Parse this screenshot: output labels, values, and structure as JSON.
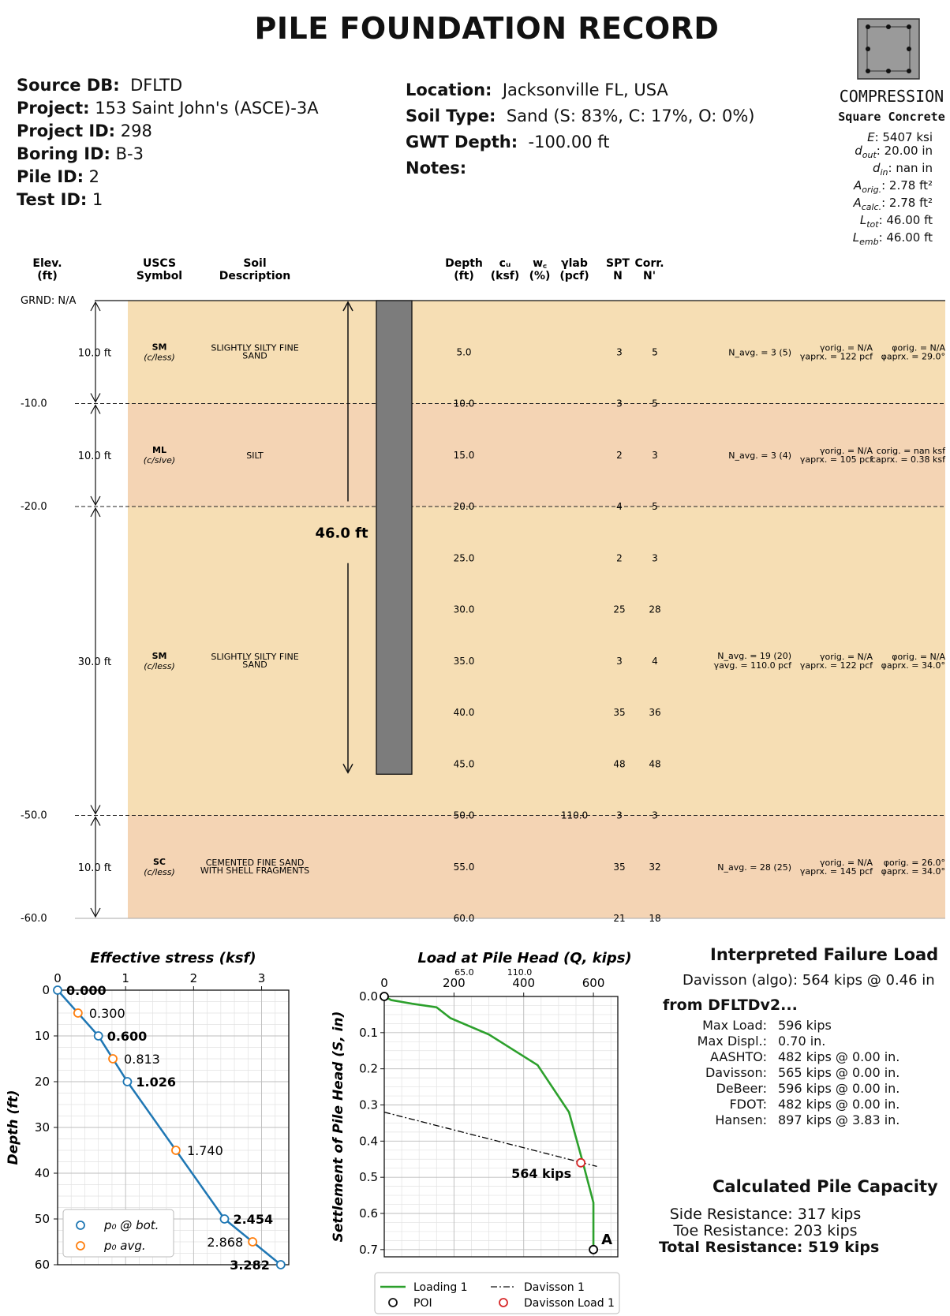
{
  "title": "PILE FOUNDATION RECORD",
  "meta_left": [
    {
      "label": "Source DB:",
      "value": "DFLTD"
    },
    {
      "label": "Project:",
      "value": "153 Saint John's (ASCE)-3A"
    },
    {
      "label": "Project ID:",
      "value": "298"
    },
    {
      "label": "Boring ID:",
      "value": "B-3"
    },
    {
      "label": "Pile ID:",
      "value": "2"
    },
    {
      "label": "Test ID:",
      "value": "1"
    }
  ],
  "meta_right": [
    {
      "label": "Location:",
      "value": "Jacksonville FL, USA"
    },
    {
      "label": "Soil Type:",
      "value": "Sand (S: 83%, C: 17%, O: 0%)"
    },
    {
      "label": "GWT Depth:",
      "value": "-100.00 ft"
    },
    {
      "label": "Notes:",
      "value": ""
    }
  ],
  "pile_info": {
    "type": "COMPRESSION",
    "section": "Square Concrete",
    "props": [
      {
        "sym": "E",
        "sub": "",
        "val": "5407 ksi"
      },
      {
        "sym": "d",
        "sub": "out",
        "val": "20.00 in"
      },
      {
        "sym": "d",
        "sub": "in",
        "val": "nan in"
      },
      {
        "sym": "A",
        "sub": "orig.",
        "val": "2.78 ft²"
      },
      {
        "sym": "A",
        "sub": "calc.",
        "val": "2.78 ft²"
      },
      {
        "sym": "L",
        "sub": "tot",
        "val": "46.00 ft"
      },
      {
        "sym": "L",
        "sub": "emb",
        "val": "46.00 ft"
      }
    ]
  },
  "log_headers": {
    "elev": "Elev.\n(ft)",
    "uscs": "USCS\nSymbol",
    "soil": "Soil\nDescription",
    "depth": "Depth\n(ft)",
    "cu": "cᵤ\n(ksf)",
    "wc": "w꜀\n(%)",
    "ylab": "γlab\n(pcf)",
    "spt": "SPT\nN",
    "corr": "Corr.\nN'"
  },
  "ground_label": "GRND: N/A",
  "elev_marks": [
    "-10.0",
    "-20.0",
    "-50.0",
    "-60.0"
  ],
  "pile_length_label": "46.0 ft",
  "layers": [
    {
      "thickness": "10.0 ft",
      "uscs": "SM",
      "cls": "(c/less)",
      "desc": [
        "SLIGHTLY SILTY FINE",
        "SAND"
      ],
      "navg": "N_avg. = 3 (5)",
      "gamma_avg": "",
      "gamma_orig": "γorig. = N/A",
      "gamma_aprx": "γaprx. = 122 pcf",
      "p1": "φorig. = N/A",
      "p2": "φaprx. = 29.0°",
      "color": "#f6deb4"
    },
    {
      "thickness": "10.0 ft",
      "uscs": "ML",
      "cls": "(c/sive)",
      "desc": [
        "SILT"
      ],
      "navg": "N_avg. = 3 (4)",
      "gamma_avg": "",
      "gamma_orig": "γorig. = N/A",
      "gamma_aprx": "γaprx. = 105 pcf",
      "p1": "corig. = nan ksf",
      "p2": "caprx. = 0.38 ksf",
      "color": "#f4d4b4"
    },
    {
      "thickness": "30.0 ft",
      "uscs": "SM",
      "cls": "(c/less)",
      "desc": [
        "SLIGHTLY SILTY FINE",
        "SAND"
      ],
      "navg": "N_avg. = 19 (20)",
      "gamma_avg": "γavg. = 110.0 pcf",
      "gamma_orig": "γorig. = N/A",
      "gamma_aprx": "γaprx. = 122 pcf",
      "p1": "φorig. = N/A",
      "p2": "φaprx. = 34.0°",
      "color": "#f6deb4"
    },
    {
      "thickness": "10.0 ft",
      "uscs": "SC",
      "cls": "(c/less)",
      "desc": [
        "CEMENTED FINE SAND",
        "WITH SHELL FRAGMENTS"
      ],
      "navg": "N_avg. = 28 (25)",
      "gamma_avg": "",
      "gamma_orig": "γorig. = N/A",
      "gamma_aprx": "γaprx. = 145 pcf",
      "p1": "φorig. = 26.0°",
      "p2": "φaprx. = 34.0°",
      "color": "#f4d4b4"
    }
  ],
  "samples": [
    {
      "depth": "5.0",
      "ylab": "",
      "n": "3",
      "ncorr": "5"
    },
    {
      "depth": "10.0",
      "ylab": "",
      "n": "3",
      "ncorr": "5"
    },
    {
      "depth": "15.0",
      "ylab": "",
      "n": "2",
      "ncorr": "3"
    },
    {
      "depth": "20.0",
      "ylab": "",
      "n": "4",
      "ncorr": "5"
    },
    {
      "depth": "25.0",
      "ylab": "",
      "n": "2",
      "ncorr": "3"
    },
    {
      "depth": "30.0",
      "ylab": "",
      "n": "25",
      "ncorr": "28"
    },
    {
      "depth": "35.0",
      "ylab": "",
      "n": "3",
      "ncorr": "4"
    },
    {
      "depth": "40.0",
      "ylab": "",
      "n": "35",
      "ncorr": "36"
    },
    {
      "depth": "45.0",
      "ylab": "",
      "n": "48",
      "ncorr": "48"
    },
    {
      "depth": "50.0",
      "ylab": "110.0",
      "n": "3",
      "ncorr": "3"
    },
    {
      "depth": "55.0",
      "ylab": "",
      "n": "35",
      "ncorr": "32"
    },
    {
      "depth": "60.0",
      "ylab": "",
      "n": "21",
      "ncorr": "18"
    }
  ],
  "failure": {
    "heading": "Interpreted Failure Load",
    "davisson_algo": "Davisson (algo):  564 kips @ 0.46 in",
    "from_heading": "from DFLTDv2...",
    "rows": [
      {
        "k": "Max Load:",
        "v": "596 kips"
      },
      {
        "k": "Max Displ.:",
        "v": "0.70 in."
      },
      {
        "k": "AASHTO:",
        "v": "482 kips @ 0.00 in."
      },
      {
        "k": "Davisson:",
        "v": "565 kips @ 0.00 in."
      },
      {
        "k": "DeBeer:",
        "v": "596 kips @ 0.00 in."
      },
      {
        "k": "FDOT:",
        "v": "482 kips @ 0.00 in."
      },
      {
        "k": "Hansen:",
        "v": "897 kips @ 3.83 in."
      }
    ]
  },
  "capacity": {
    "heading": "Calculated Pile Capacity",
    "side": "Side Resistance: 317 kips",
    "toe": "Toe Resistance: 203 kips",
    "total": "Total Resistance: 519 kips"
  },
  "chart_data": [
    {
      "type": "line",
      "title": "Effective stress (ksf)",
      "xlabel": "",
      "ylabel": "Depth (ft)",
      "xlim": [
        0,
        3.4
      ],
      "ylim": [
        60,
        0
      ],
      "xticks": [
        "0",
        "1",
        "2",
        "3"
      ],
      "yticks": [
        "0",
        "10",
        "20",
        "30",
        "40",
        "50",
        "60"
      ],
      "grid": true,
      "legend_position": "bottom-left",
      "series": [
        {
          "name": "p₀ @ bot.",
          "color": "#1f77b4",
          "points": [
            [
              0.0,
              0
            ],
            [
              0.6,
              10
            ],
            [
              1.026,
              20
            ],
            [
              2.454,
              50
            ],
            [
              3.282,
              60
            ]
          ],
          "labels": [
            "0.000",
            "0.600",
            "1.026",
            "2.454",
            "3.282"
          ]
        },
        {
          "name": "p₀ avg.",
          "color": "#ff7f0e",
          "points": [
            [
              0.3,
              5
            ],
            [
              0.813,
              15
            ],
            [
              1.74,
              35
            ],
            [
              2.868,
              55
            ]
          ],
          "labels": [
            "0.300",
            "0.813",
            "1.740",
            "2.868"
          ]
        }
      ]
    },
    {
      "type": "line",
      "title": "Load at Pile Head (Q, kips)",
      "xlabel": "",
      "ylabel": "Settlement of Pile Head (S, in)",
      "xlim": [
        0,
        670
      ],
      "ylim": [
        0.72,
        0
      ],
      "xticks": [
        "0",
        "200",
        "400",
        "600"
      ],
      "yticks": [
        "0.0",
        "0.1",
        "0.2",
        "0.3",
        "0.4",
        "0.5",
        "0.6",
        "0.7"
      ],
      "secondary_xticks": [
        "65.0",
        "110.0"
      ],
      "grid": true,
      "legend_position": "bottom",
      "series": [
        {
          "name": "Loading 1",
          "color": "#2ca02c",
          "points": [
            [
              0,
              0
            ],
            [
              20,
              0.01
            ],
            [
              80,
              0.02
            ],
            [
              150,
              0.03
            ],
            [
              190,
              0.06
            ],
            [
              300,
              0.105
            ],
            [
              440,
              0.19
            ],
            [
              530,
              0.32
            ],
            [
              570,
              0.46
            ],
            [
              600,
              0.57
            ],
            [
              600,
              0.7
            ]
          ]
        },
        {
          "name": "Davisson 1",
          "color": "#000000",
          "points": [
            [
              0,
              0.32
            ],
            [
              610,
              0.47
            ]
          ]
        },
        {
          "name": "POI",
          "color": "#000000",
          "points": [
            [
              0,
              0
            ],
            [
              600,
              0.7
            ]
          ]
        },
        {
          "name": "Davisson Load 1",
          "color": "#d62728",
          "points": [
            [
              564,
              0.46
            ]
          ]
        }
      ],
      "annotations": [
        "564 kips",
        "A"
      ]
    }
  ]
}
